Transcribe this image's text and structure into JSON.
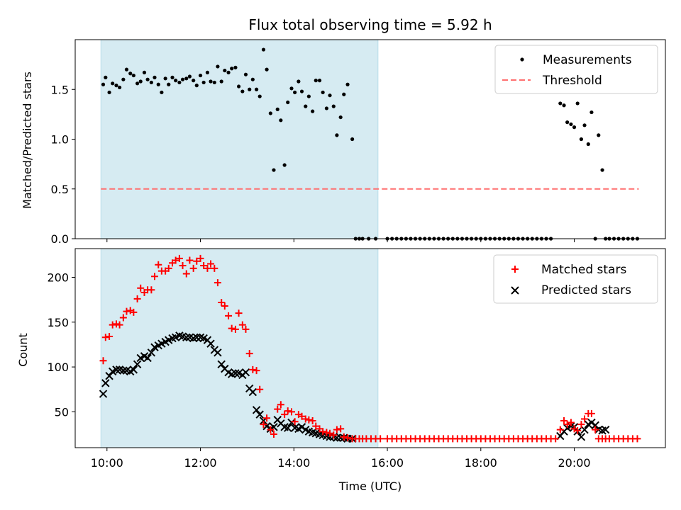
{
  "chart_data": {
    "type": "scatter",
    "title": "Flux total observing time = 5.92 h",
    "xlabel": "Time (UTC)",
    "x_unit": "hours UTC",
    "x_ticks": [
      "10:00",
      "12:00",
      "14:00",
      "16:00",
      "18:00",
      "20:00"
    ],
    "shaded_interval": {
      "start": 9.87,
      "end": 15.8,
      "color": "#add8e6"
    },
    "ratio_panel": {
      "ylabel": "Matched/Predicted stars",
      "ylim": [
        0,
        2.0
      ],
      "y_ticks": [
        "0.0",
        "0.5",
        "1.0",
        "1.5"
      ],
      "legend": [
        "Measurements",
        "Threshold"
      ],
      "threshold": {
        "value": 0.5,
        "x_start": 9.87,
        "x_end": 21.38,
        "color": "#ff6f6f"
      },
      "measurements": [
        [
          9.92,
          1.55
        ],
        [
          9.97,
          1.62
        ],
        [
          10.05,
          1.47
        ],
        [
          10.12,
          1.56
        ],
        [
          10.2,
          1.54
        ],
        [
          10.27,
          1.52
        ],
        [
          10.35,
          1.6
        ],
        [
          10.42,
          1.7
        ],
        [
          10.5,
          1.66
        ],
        [
          10.57,
          1.64
        ],
        [
          10.65,
          1.56
        ],
        [
          10.72,
          1.58
        ],
        [
          10.8,
          1.67
        ],
        [
          10.87,
          1.6
        ],
        [
          10.95,
          1.57
        ],
        [
          11.02,
          1.62
        ],
        [
          11.1,
          1.55
        ],
        [
          11.17,
          1.47
        ],
        [
          11.25,
          1.61
        ],
        [
          11.32,
          1.55
        ],
        [
          11.4,
          1.62
        ],
        [
          11.47,
          1.59
        ],
        [
          11.55,
          1.57
        ],
        [
          11.62,
          1.6
        ],
        [
          11.7,
          1.61
        ],
        [
          11.77,
          1.63
        ],
        [
          11.85,
          1.59
        ],
        [
          11.92,
          1.54
        ],
        [
          12.0,
          1.64
        ],
        [
          12.07,
          1.57
        ],
        [
          12.15,
          1.67
        ],
        [
          12.22,
          1.58
        ],
        [
          12.3,
          1.57
        ],
        [
          12.37,
          1.73
        ],
        [
          12.45,
          1.58
        ],
        [
          12.52,
          1.69
        ],
        [
          12.6,
          1.67
        ],
        [
          12.67,
          1.71
        ],
        [
          12.75,
          1.72
        ],
        [
          12.82,
          1.53
        ],
        [
          12.9,
          1.48
        ],
        [
          12.97,
          1.65
        ],
        [
          13.05,
          1.5
        ],
        [
          13.12,
          1.6
        ],
        [
          13.2,
          1.5
        ],
        [
          13.27,
          1.43
        ],
        [
          13.35,
          1.9
        ],
        [
          13.42,
          1.7
        ],
        [
          13.5,
          1.26
        ],
        [
          13.57,
          0.69
        ],
        [
          13.65,
          1.3
        ],
        [
          13.72,
          1.19
        ],
        [
          13.8,
          0.74
        ],
        [
          13.87,
          1.37
        ],
        [
          13.95,
          1.51
        ],
        [
          14.02,
          1.47
        ],
        [
          14.1,
          1.58
        ],
        [
          14.17,
          1.48
        ],
        [
          14.25,
          1.33
        ],
        [
          14.32,
          1.43
        ],
        [
          14.4,
          1.28
        ],
        [
          14.47,
          1.59
        ],
        [
          14.55,
          1.59
        ],
        [
          14.62,
          1.47
        ],
        [
          14.7,
          1.31
        ],
        [
          14.77,
          1.44
        ],
        [
          14.85,
          1.33
        ],
        [
          14.92,
          1.04
        ],
        [
          15.0,
          1.22
        ],
        [
          15.07,
          1.45
        ],
        [
          15.15,
          1.55
        ],
        [
          15.25,
          1.0
        ],
        [
          15.32,
          0.0
        ],
        [
          15.4,
          0.0
        ],
        [
          15.47,
          0.0
        ],
        [
          15.6,
          0.0
        ],
        [
          15.75,
          0.0
        ],
        [
          16.0,
          0.0
        ],
        [
          16.1,
          0.0
        ],
        [
          16.2,
          0.0
        ],
        [
          16.3,
          0.0
        ],
        [
          16.4,
          0.0
        ],
        [
          16.5,
          0.0
        ],
        [
          16.6,
          0.0
        ],
        [
          16.7,
          0.0
        ],
        [
          16.8,
          0.0
        ],
        [
          16.9,
          0.0
        ],
        [
          17.0,
          0.0
        ],
        [
          17.1,
          0.0
        ],
        [
          17.2,
          0.0
        ],
        [
          17.3,
          0.0
        ],
        [
          17.4,
          0.0
        ],
        [
          17.5,
          0.0
        ],
        [
          17.6,
          0.0
        ],
        [
          17.7,
          0.0
        ],
        [
          17.8,
          0.0
        ],
        [
          17.9,
          0.0
        ],
        [
          18.0,
          0.0
        ],
        [
          18.1,
          0.0
        ],
        [
          18.2,
          0.0
        ],
        [
          18.3,
          0.0
        ],
        [
          18.4,
          0.0
        ],
        [
          18.5,
          0.0
        ],
        [
          18.6,
          0.0
        ],
        [
          18.7,
          0.0
        ],
        [
          18.8,
          0.0
        ],
        [
          18.9,
          0.0
        ],
        [
          19.0,
          0.0
        ],
        [
          19.1,
          0.0
        ],
        [
          19.2,
          0.0
        ],
        [
          19.3,
          0.0
        ],
        [
          19.4,
          0.0
        ],
        [
          19.5,
          0.0
        ],
        [
          19.7,
          1.36
        ],
        [
          19.78,
          1.34
        ],
        [
          19.85,
          1.17
        ],
        [
          19.93,
          1.15
        ],
        [
          20.0,
          1.12
        ],
        [
          20.07,
          1.36
        ],
        [
          20.15,
          1.0
        ],
        [
          20.22,
          1.14
        ],
        [
          20.3,
          0.95
        ],
        [
          20.37,
          1.27
        ],
        [
          20.45,
          0.0
        ],
        [
          20.52,
          1.04
        ],
        [
          20.6,
          0.69
        ],
        [
          20.67,
          0.0
        ],
        [
          20.75,
          0.0
        ],
        [
          20.85,
          0.0
        ],
        [
          20.95,
          0.0
        ],
        [
          21.05,
          0.0
        ],
        [
          21.15,
          0.0
        ],
        [
          21.25,
          0.0
        ],
        [
          21.35,
          0.0
        ]
      ]
    },
    "count_panel": {
      "ylabel": "Count",
      "ylim": [
        10,
        232
      ],
      "y_ticks": [
        "50",
        "100",
        "150",
        "200"
      ],
      "legend": [
        "Matched stars",
        "Predicted stars"
      ],
      "matched_color": "#ff0000",
      "predicted_color": "#000000",
      "matched": [
        [
          9.92,
          107
        ],
        [
          9.97,
          133
        ],
        [
          10.05,
          134
        ],
        [
          10.12,
          147
        ],
        [
          10.2,
          148
        ],
        [
          10.27,
          147
        ],
        [
          10.35,
          155
        ],
        [
          10.42,
          162
        ],
        [
          10.5,
          163
        ],
        [
          10.57,
          161
        ],
        [
          10.65,
          176
        ],
        [
          10.72,
          188
        ],
        [
          10.8,
          183
        ],
        [
          10.87,
          186
        ],
        [
          10.95,
          186
        ],
        [
          11.02,
          201
        ],
        [
          11.1,
          214
        ],
        [
          11.17,
          207
        ],
        [
          11.25,
          207
        ],
        [
          11.32,
          210
        ],
        [
          11.4,
          216
        ],
        [
          11.47,
          219
        ],
        [
          11.55,
          221
        ],
        [
          11.62,
          213
        ],
        [
          11.7,
          204
        ],
        [
          11.77,
          219
        ],
        [
          11.85,
          210
        ],
        [
          11.92,
          218
        ],
        [
          12.0,
          221
        ],
        [
          12.07,
          213
        ],
        [
          12.15,
          210
        ],
        [
          12.22,
          215
        ],
        [
          12.3,
          210
        ],
        [
          12.37,
          194
        ],
        [
          12.45,
          172
        ],
        [
          12.52,
          168
        ],
        [
          12.6,
          157
        ],
        [
          12.67,
          143
        ],
        [
          12.75,
          142
        ],
        [
          12.82,
          160
        ],
        [
          12.9,
          147
        ],
        [
          12.97,
          142
        ],
        [
          13.05,
          115
        ],
        [
          13.12,
          97
        ],
        [
          13.2,
          96
        ],
        [
          13.27,
          75
        ],
        [
          13.35,
          36
        ],
        [
          13.42,
          43
        ],
        [
          13.5,
          30
        ],
        [
          13.57,
          25
        ],
        [
          13.65,
          53
        ],
        [
          13.72,
          58
        ],
        [
          13.8,
          47
        ],
        [
          13.87,
          51
        ],
        [
          13.95,
          50
        ],
        [
          14.02,
          39
        ],
        [
          14.1,
          47
        ],
        [
          14.17,
          45
        ],
        [
          14.25,
          42
        ],
        [
          14.32,
          41
        ],
        [
          14.4,
          40
        ],
        [
          14.47,
          34
        ],
        [
          14.55,
          31
        ],
        [
          14.62,
          28
        ],
        [
          14.7,
          27
        ],
        [
          14.77,
          26
        ],
        [
          14.85,
          24
        ],
        [
          14.92,
          30
        ],
        [
          15.0,
          31
        ],
        [
          15.07,
          22
        ],
        [
          15.15,
          21
        ],
        [
          15.25,
          20
        ],
        [
          15.32,
          20
        ],
        [
          15.4,
          20
        ],
        [
          15.47,
          20
        ],
        [
          15.55,
          20
        ],
        [
          15.65,
          20
        ],
        [
          15.75,
          20
        ],
        [
          15.85,
          20
        ],
        [
          16.0,
          20
        ],
        [
          16.1,
          20
        ],
        [
          16.2,
          20
        ],
        [
          16.3,
          20
        ],
        [
          16.4,
          20
        ],
        [
          16.5,
          20
        ],
        [
          16.6,
          20
        ],
        [
          16.7,
          20
        ],
        [
          16.8,
          20
        ],
        [
          16.9,
          20
        ],
        [
          17.0,
          20
        ],
        [
          17.1,
          20
        ],
        [
          17.2,
          20
        ],
        [
          17.3,
          20
        ],
        [
          17.4,
          20
        ],
        [
          17.5,
          20
        ],
        [
          17.6,
          20
        ],
        [
          17.7,
          20
        ],
        [
          17.8,
          20
        ],
        [
          17.9,
          20
        ],
        [
          18.0,
          20
        ],
        [
          18.1,
          20
        ],
        [
          18.2,
          20
        ],
        [
          18.3,
          20
        ],
        [
          18.4,
          20
        ],
        [
          18.5,
          20
        ],
        [
          18.6,
          20
        ],
        [
          18.7,
          20
        ],
        [
          18.8,
          20
        ],
        [
          18.9,
          20
        ],
        [
          19.0,
          20
        ],
        [
          19.1,
          20
        ],
        [
          19.2,
          20
        ],
        [
          19.3,
          20
        ],
        [
          19.4,
          20
        ],
        [
          19.5,
          20
        ],
        [
          19.6,
          20
        ],
        [
          19.7,
          30
        ],
        [
          19.78,
          40
        ],
        [
          19.85,
          36
        ],
        [
          19.93,
          38
        ],
        [
          20.0,
          31
        ],
        [
          20.07,
          29
        ],
        [
          20.15,
          36
        ],
        [
          20.22,
          42
        ],
        [
          20.3,
          48
        ],
        [
          20.37,
          48
        ],
        [
          20.45,
          30
        ],
        [
          20.52,
          20
        ],
        [
          20.6,
          20
        ],
        [
          20.67,
          20
        ],
        [
          20.75,
          20
        ],
        [
          20.85,
          20
        ],
        [
          20.95,
          20
        ],
        [
          21.05,
          20
        ],
        [
          21.15,
          20
        ],
        [
          21.25,
          20
        ],
        [
          21.35,
          20
        ]
      ],
      "predicted": [
        [
          9.92,
          70
        ],
        [
          9.97,
          82
        ],
        [
          10.05,
          90
        ],
        [
          10.12,
          95
        ],
        [
          10.2,
          97
        ],
        [
          10.27,
          97
        ],
        [
          10.35,
          96
        ],
        [
          10.42,
          96
        ],
        [
          10.5,
          95
        ],
        [
          10.57,
          97
        ],
        [
          10.65,
          103
        ],
        [
          10.72,
          110
        ],
        [
          10.8,
          112
        ],
        [
          10.87,
          110
        ],
        [
          10.95,
          116
        ],
        [
          11.02,
          122
        ],
        [
          11.1,
          124
        ],
        [
          11.17,
          126
        ],
        [
          11.25,
          128
        ],
        [
          11.32,
          130
        ],
        [
          11.4,
          132
        ],
        [
          11.47,
          133
        ],
        [
          11.55,
          135
        ],
        [
          11.62,
          134
        ],
        [
          11.7,
          133
        ],
        [
          11.77,
          133
        ],
        [
          11.85,
          132
        ],
        [
          11.92,
          133
        ],
        [
          12.0,
          133
        ],
        [
          12.07,
          132
        ],
        [
          12.15,
          130
        ],
        [
          12.22,
          126
        ],
        [
          12.3,
          119
        ],
        [
          12.37,
          116
        ],
        [
          12.45,
          103
        ],
        [
          12.52,
          98
        ],
        [
          12.6,
          94
        ],
        [
          12.67,
          92
        ],
        [
          12.75,
          93
        ],
        [
          12.82,
          93
        ],
        [
          12.9,
          91
        ],
        [
          12.97,
          94
        ],
        [
          13.05,
          76
        ],
        [
          13.12,
          72
        ],
        [
          13.2,
          52
        ],
        [
          13.27,
          47
        ],
        [
          13.35,
          40
        ],
        [
          13.42,
          34
        ],
        [
          13.5,
          31
        ],
        [
          13.57,
          33
        ],
        [
          13.65,
          41
        ],
        [
          13.72,
          37
        ],
        [
          13.8,
          33
        ],
        [
          13.87,
          32
        ],
        [
          13.95,
          38
        ],
        [
          14.02,
          32
        ],
        [
          14.1,
          31
        ],
        [
          14.17,
          33
        ],
        [
          14.25,
          30
        ],
        [
          14.32,
          28
        ],
        [
          14.4,
          27
        ],
        [
          14.47,
          26
        ],
        [
          14.55,
          25
        ],
        [
          14.62,
          24
        ],
        [
          14.7,
          23
        ],
        [
          14.77,
          22
        ],
        [
          14.85,
          22
        ],
        [
          14.92,
          21
        ],
        [
          15.0,
          21
        ],
        [
          15.07,
          21
        ],
        [
          15.15,
          20
        ],
        [
          15.25,
          20
        ],
        [
          19.7,
          23
        ],
        [
          19.78,
          28
        ],
        [
          19.85,
          32
        ],
        [
          19.93,
          34
        ],
        [
          20.0,
          33
        ],
        [
          20.07,
          28
        ],
        [
          20.15,
          22
        ],
        [
          20.22,
          30
        ],
        [
          20.3,
          36
        ],
        [
          20.37,
          38
        ],
        [
          20.45,
          35
        ],
        [
          20.52,
          30
        ],
        [
          20.6,
          29
        ],
        [
          20.67,
          30
        ]
      ]
    }
  }
}
